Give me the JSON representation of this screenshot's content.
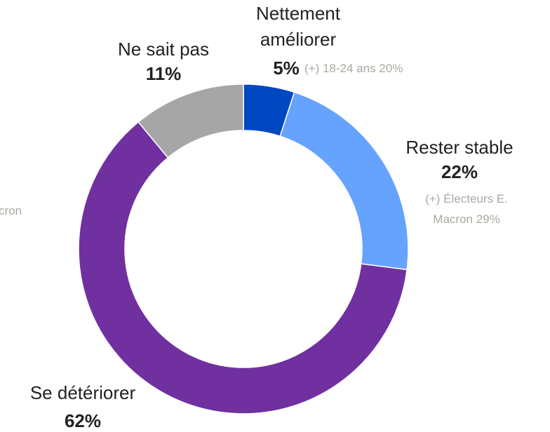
{
  "chart_data": {
    "type": "donut",
    "categories": [
      "Nettement améliorer",
      "Rester stable",
      "Se détériorer",
      "Ne sait pas"
    ],
    "values": [
      5,
      22,
      62,
      11
    ],
    "value_labels": [
      "5%",
      "22%",
      "62%",
      "11%"
    ],
    "colors": [
      "#0047c2",
      "#66a3ff",
      "#7030a0",
      "#a6a6a6"
    ],
    "annotations": [
      "(+) 18-24 ans 20%",
      "(+) Électeurs E. Macron 29%",
      "cron"
    ]
  }
}
